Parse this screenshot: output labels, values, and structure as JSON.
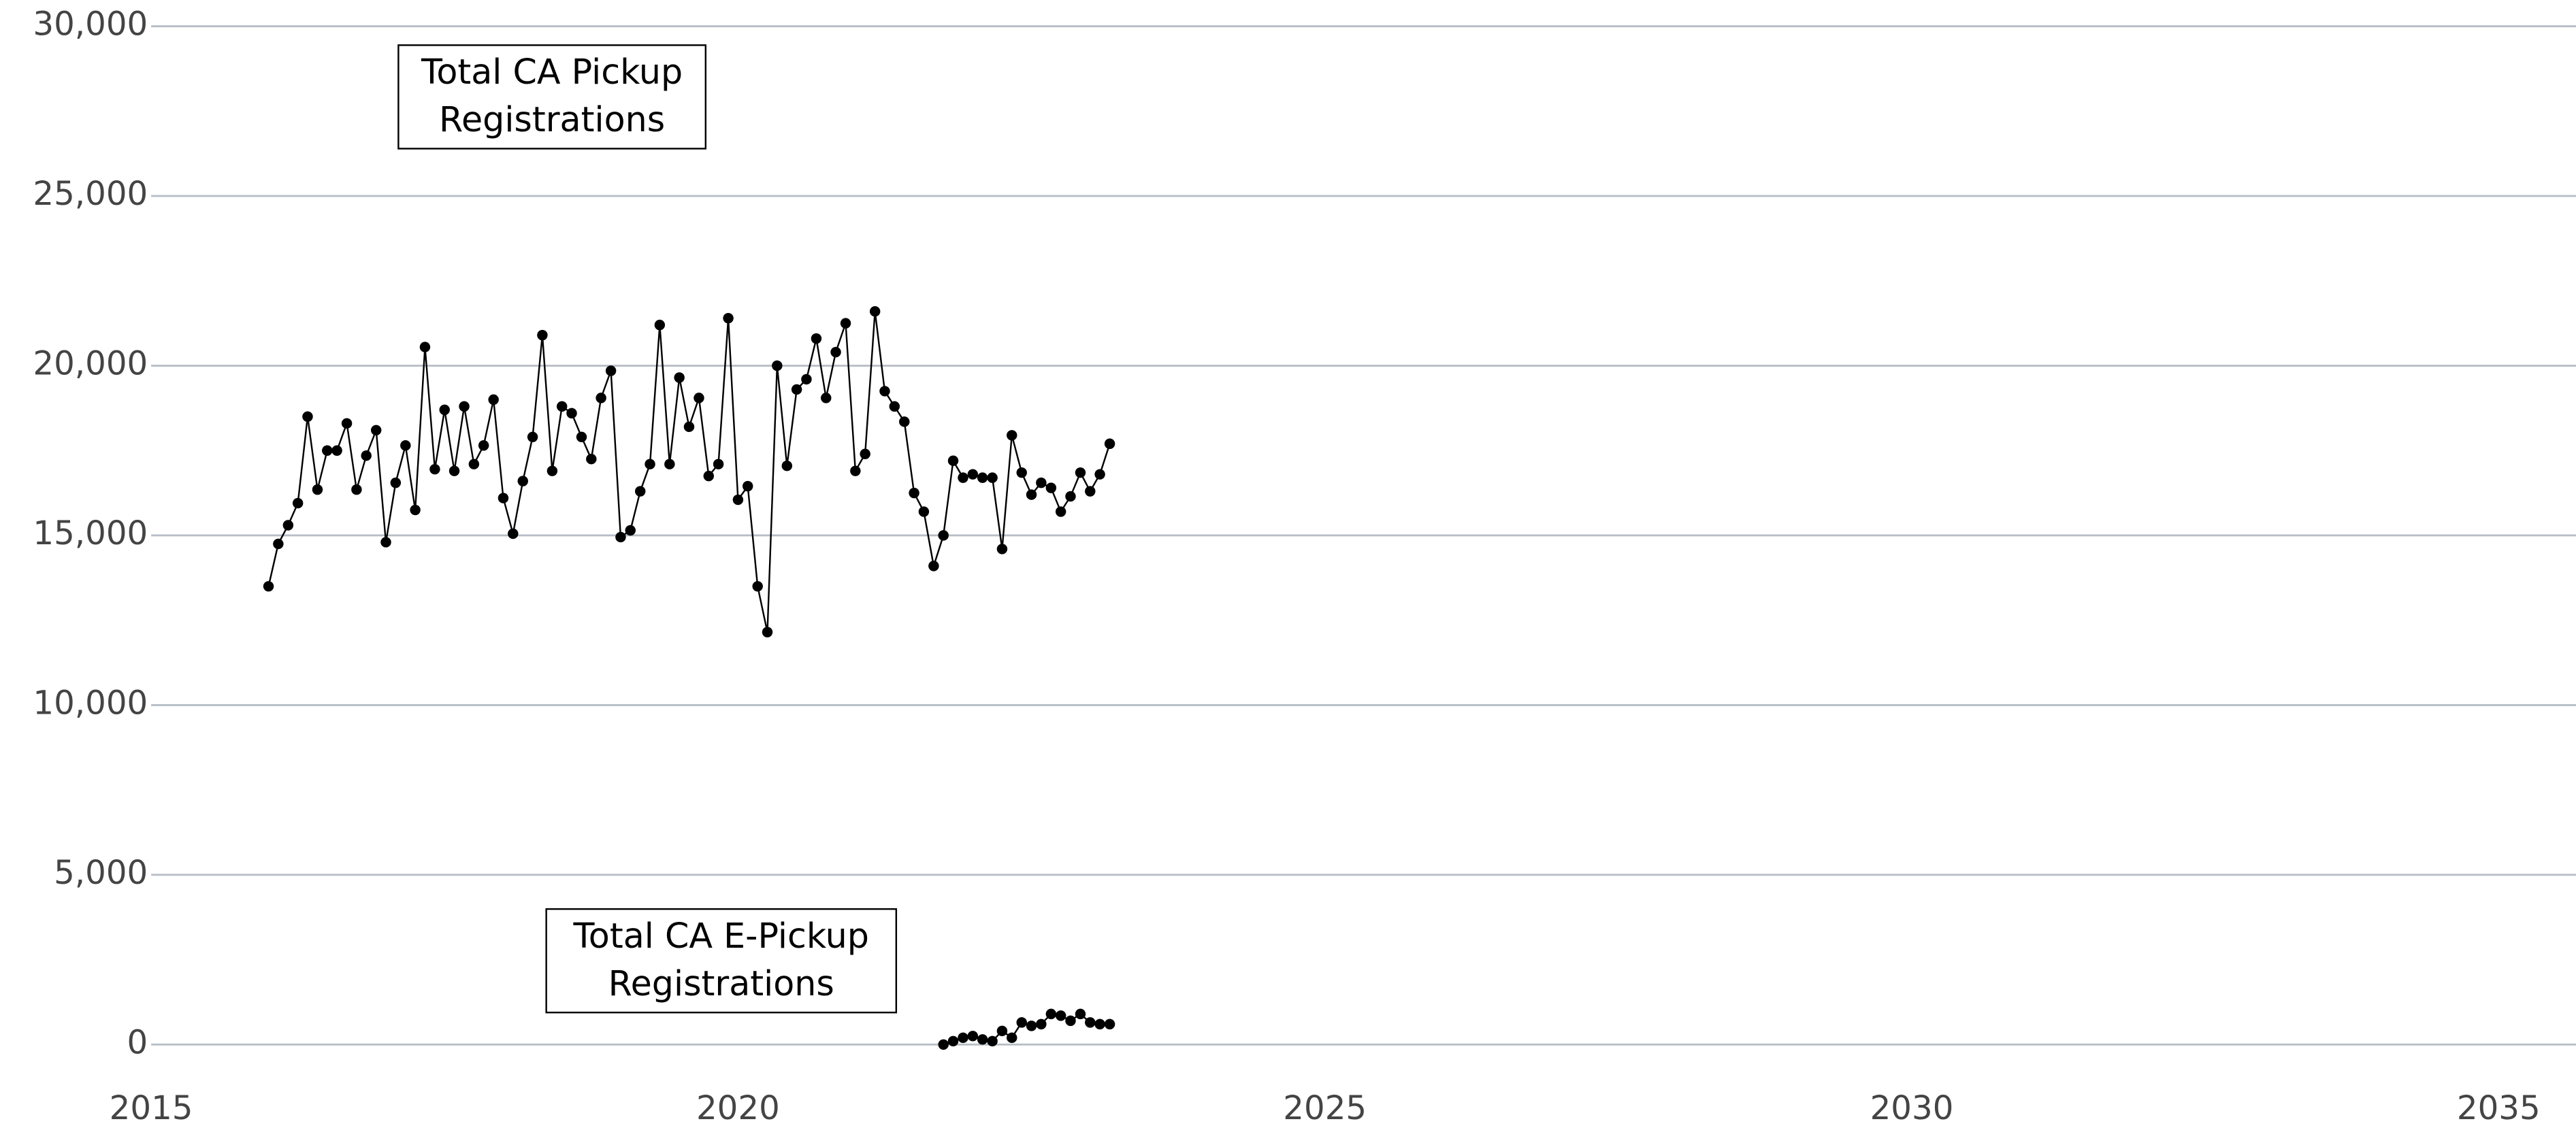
{
  "chart_data": {
    "type": "line",
    "series": [
      {
        "name": "Total CA Pickup Registrations",
        "color": "#000000",
        "x": [
          2016.0,
          2016.083,
          2016.167,
          2016.25,
          2016.333,
          2016.417,
          2016.5,
          2016.583,
          2016.667,
          2016.75,
          2016.833,
          2016.917,
          2017.0,
          2017.083,
          2017.167,
          2017.25,
          2017.333,
          2017.417,
          2017.5,
          2017.583,
          2017.667,
          2017.75,
          2017.833,
          2017.917,
          2018.0,
          2018.083,
          2018.167,
          2018.25,
          2018.333,
          2018.417,
          2018.5,
          2018.583,
          2018.667,
          2018.75,
          2018.833,
          2018.917,
          2019.0,
          2019.083,
          2019.167,
          2019.25,
          2019.333,
          2019.417,
          2019.5,
          2019.583,
          2019.667,
          2019.75,
          2019.833,
          2019.917,
          2020.0,
          2020.083,
          2020.167,
          2020.25,
          2020.333,
          2020.417,
          2020.5,
          2020.583,
          2020.667,
          2020.75,
          2020.833,
          2020.917,
          2021.0,
          2021.083,
          2021.167,
          2021.25,
          2021.333,
          2021.417,
          2021.5,
          2021.583,
          2021.667,
          2021.75,
          2021.833,
          2021.917,
          2022.0,
          2022.083,
          2022.167,
          2022.25,
          2022.333,
          2022.417,
          2022.5,
          2022.583,
          2022.667,
          2022.75,
          2022.833,
          2022.917,
          2023.0,
          2023.083,
          2023.167
        ],
        "values": [
          13500,
          14750,
          15300,
          15950,
          18500,
          16350,
          17500,
          17500,
          18300,
          16350,
          17350,
          18100,
          14800,
          16550,
          17650,
          15750,
          20550,
          16950,
          18700,
          16900,
          18800,
          17100,
          17650,
          19000,
          16100,
          15050,
          16600,
          17900,
          20900,
          16900,
          18800,
          18600,
          17900,
          17250,
          19050,
          19850,
          14950,
          15150,
          16300,
          17100,
          21200,
          17100,
          19650,
          18200,
          19050,
          16750,
          17100,
          21400,
          16050,
          16450,
          13500,
          12150,
          20000,
          17050,
          19300,
          19600,
          20800,
          19050,
          20400,
          21250,
          16900,
          17400,
          21600,
          19250,
          18800,
          18350,
          16250,
          15700,
          14100,
          15000,
          17200,
          16700,
          16800,
          16700,
          16700,
          14600,
          17950,
          16850,
          16200,
          16550,
          16400,
          15700,
          16150,
          16850,
          16300,
          16800,
          17700
        ]
      },
      {
        "name": "Total CA E-Pickup Registrations",
        "color": "#000000",
        "x": [
          2021.75,
          2021.833,
          2021.917,
          2022.0,
          2022.083,
          2022.167,
          2022.25,
          2022.333,
          2022.417,
          2022.5,
          2022.583,
          2022.667,
          2022.75,
          2022.833,
          2022.917,
          2023.0,
          2023.083,
          2023.167
        ],
        "values": [
          0,
          100,
          200,
          250,
          150,
          100,
          400,
          200,
          650,
          550,
          600,
          900,
          850,
          700,
          900,
          650,
          600,
          600
        ]
      }
    ],
    "xlim": [
      2015,
      2035.66
    ],
    "xticks": [
      2015,
      2020,
      2025,
      2030,
      2035
    ],
    "ylim": [
      0,
      30000
    ],
    "yticks": [
      0,
      {
        "value": 5000,
        "label": "5,000"
      },
      {
        "value": 10000,
        "label": "10,000"
      },
      {
        "value": 15000,
        "label": "15,000"
      },
      {
        "value": 20000,
        "label": "20,000"
      },
      {
        "value": 25000,
        "label": "25,000"
      },
      {
        "value": 30000,
        "label": "30,000"
      }
    ],
    "grid": true
  }
}
